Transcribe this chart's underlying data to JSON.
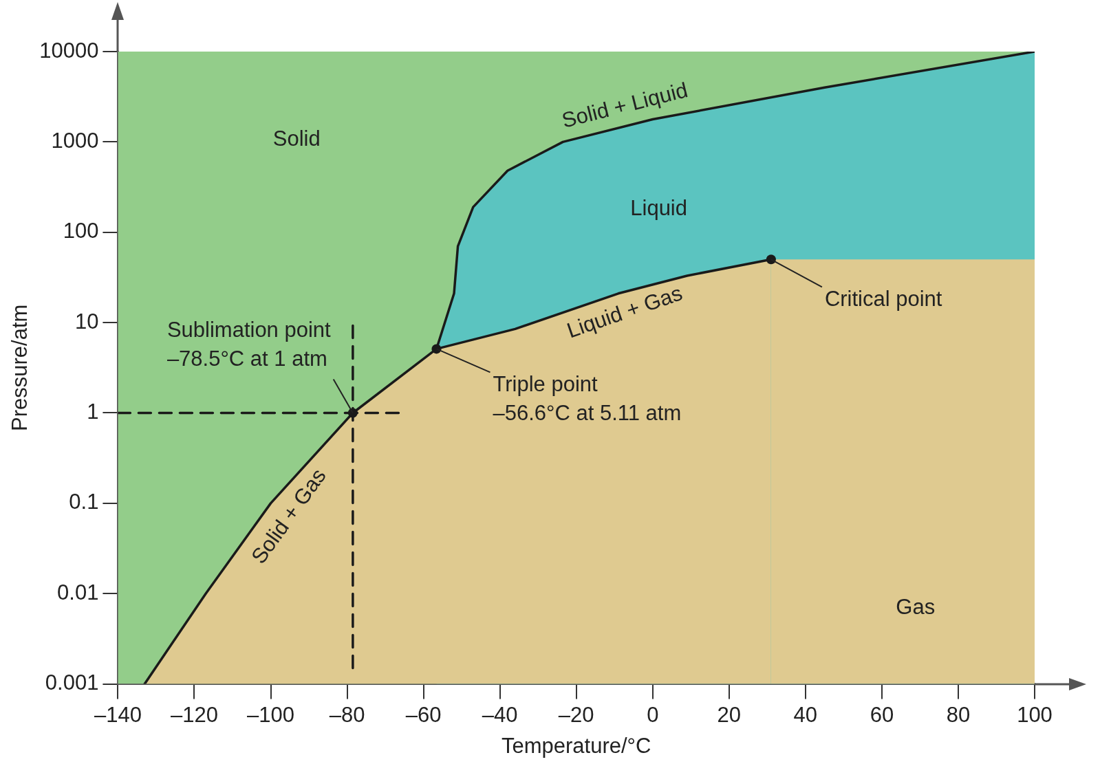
{
  "chart_data": {
    "type": "line",
    "xlabel": "Temperature/°C",
    "ylabel": "Pressure/atm",
    "log": "y",
    "grid": false,
    "legend": false,
    "xlim": [
      -140,
      100
    ],
    "ylim": [
      0.001,
      10000
    ],
    "xticks": [
      {
        "value": -140,
        "label": "–140"
      },
      {
        "value": -120,
        "label": "–120"
      },
      {
        "value": -100,
        "label": "–100"
      },
      {
        "value": -80,
        "label": "–80"
      },
      {
        "value": -60,
        "label": "–60"
      },
      {
        "value": -40,
        "label": "–40"
      },
      {
        "value": -20,
        "label": "–20"
      },
      0,
      20,
      40,
      60,
      80,
      100
    ],
    "yticks": [
      0.001,
      0.01,
      0.1,
      1,
      10,
      100,
      1000,
      10000
    ],
    "series": [
      {
        "type": "scatter",
        "color": "#1a1a1a",
        "marker": "circle",
        "x": [
          -78.5,
          -56.6,
          31
        ],
        "values": [
          1,
          5.11,
          50
        ]
      },
      {
        "type": "line",
        "color": "#1a1a1a",
        "line_style": "dashed",
        "marker": "none",
        "x": [
          -78.5,
          -78.5
        ],
        "values": [
          0.0015,
          10
        ]
      },
      {
        "type": "line",
        "color": "#1a1a1a",
        "line_style": "dashed",
        "marker": "none",
        "x": [
          -140,
          -65
        ],
        "values": [
          1,
          1
        ]
      },
      {
        "type": "area",
        "color": "#dfca90",
        "line_style": "solid",
        "marker": "none",
        "x": [
          -133,
          -117,
          -100,
          -78.5,
          -56.6,
          -36,
          -9,
          9,
          31
        ],
        "values": [
          0.001,
          0.01,
          0.1,
          1,
          5.11,
          8.5,
          21,
          33,
          50
        ]
      },
      {
        "type": "area",
        "color": "#dfca90",
        "marker": "none",
        "x": [
          31,
          100
        ],
        "values": [
          50,
          50
        ]
      },
      {
        "type": "area",
        "color": "#5bc4c0",
        "line_style": "solid",
        "marker": "none",
        "x": [
          -56.6,
          -52,
          -51,
          -47,
          -38,
          -23.5,
          0,
          45,
          100
        ],
        "values": [
          5.11,
          21,
          70,
          190,
          480,
          1000,
          1780,
          4000,
          10000
        ]
      },
      {
        "type": "area",
        "color": "#93cd8a",
        "marker": "none",
        "x": [
          -140,
          100
        ],
        "values": [
          10000,
          10000
        ]
      }
    ],
    "annotations": [
      "Solid",
      "Liquid",
      "Gas",
      {
        "text": "Solid + Liquid",
        "x": -6,
        "y": 1535
      },
      {
        "text": "Liquid + Gas",
        "x": -9,
        "y": 21
      },
      {
        "text": "Solid + Gas",
        "x": -100,
        "y": 0.1
      },
      {
        "text": "Sublimation point\n–78.5°C at 1 atm",
        "x": -78.5,
        "y": 1
      },
      {
        "text": "Triple point\n–56.6°C at 5.11 atm",
        "x": -56.6,
        "y": 5.11
      },
      {
        "text": "Critical point",
        "x": 31,
        "y": 50
      }
    ]
  }
}
